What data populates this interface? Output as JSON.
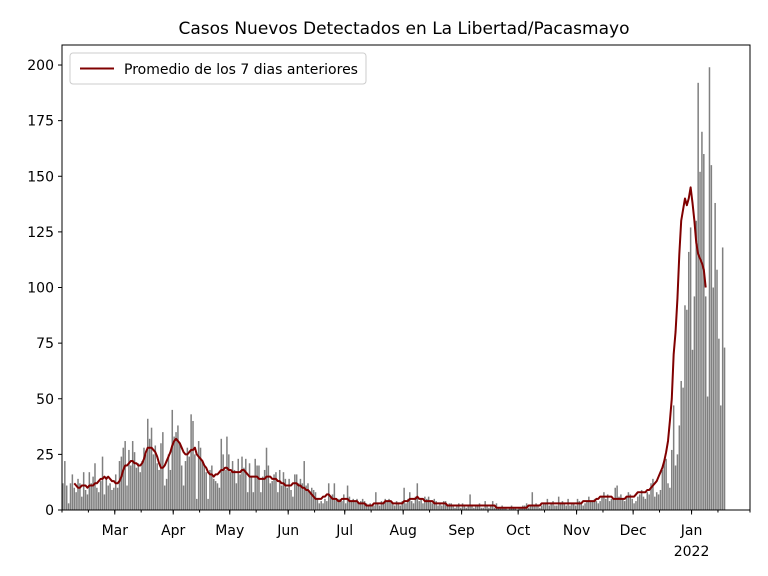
{
  "chart_data": {
    "type": "bar",
    "title": "Casos Nuevos Detectados en La Libertad/Pacasmayo",
    "xlabel": "",
    "ylabel": "",
    "x_start": "2021-02-01",
    "x_end": "2022-01-31",
    "ylim": [
      0,
      209
    ],
    "y_ticks": [
      0,
      25,
      50,
      75,
      100,
      125,
      150,
      175,
      200
    ],
    "x_ticks": [
      {
        "date": "2021-03-01",
        "label": "Mar"
      },
      {
        "date": "2021-04-01",
        "label": "Apr"
      },
      {
        "date": "2021-05-01",
        "label": "May"
      },
      {
        "date": "2021-06-01",
        "label": "Jun"
      },
      {
        "date": "2021-07-01",
        "label": "Jul"
      },
      {
        "date": "2021-08-01",
        "label": "Aug"
      },
      {
        "date": "2021-09-01",
        "label": "Sep"
      },
      {
        "date": "2021-10-01",
        "label": "Oct"
      },
      {
        "date": "2021-11-01",
        "label": "Nov"
      },
      {
        "date": "2021-12-01",
        "label": "Dec"
      },
      {
        "date": "2022-01-01",
        "label": "Jan"
      }
    ],
    "x_year_label": {
      "date": "2022-01-01",
      "label": "2022"
    },
    "grid": false,
    "legend_position": "top-left",
    "series": [
      {
        "kind": "bar",
        "color": "#808080",
        "values": [
          12,
          22,
          11,
          3,
          12,
          16,
          10,
          8,
          14,
          12,
          6,
          17,
          9,
          7,
          17,
          12,
          15,
          21,
          10,
          8,
          13,
          24,
          7,
          15,
          11,
          12,
          9,
          10,
          16,
          10,
          22,
          24,
          28,
          31,
          11,
          27,
          20,
          31,
          26,
          19,
          21,
          17,
          22,
          28,
          25,
          41,
          32,
          37,
          25,
          29,
          21,
          18,
          30,
          35,
          11,
          14,
          25,
          18,
          45,
          33,
          35,
          38,
          30,
          20,
          11,
          22,
          28,
          24,
          43,
          40,
          25,
          5,
          31,
          28,
          22,
          20,
          17,
          5,
          18,
          20,
          14,
          13,
          12,
          10,
          32,
          25,
          18,
          33,
          25,
          17,
          22,
          18,
          12,
          23,
          16,
          24,
          19,
          23,
          8,
          21,
          15,
          8,
          23,
          20,
          20,
          8,
          15,
          18,
          28,
          20,
          12,
          13,
          16,
          17,
          8,
          18,
          11,
          17,
          14,
          10,
          14,
          9,
          6,
          16,
          16,
          12,
          14,
          12,
          22,
          11,
          12,
          8,
          10,
          9,
          8,
          5,
          3,
          4,
          3,
          5,
          4,
          12,
          6,
          7,
          12,
          5,
          5,
          5,
          4,
          7,
          3,
          11,
          6,
          4,
          5,
          4,
          5,
          3,
          4,
          5,
          4,
          3,
          2,
          3,
          2,
          2,
          8,
          3,
          2,
          4,
          3,
          5,
          4,
          5,
          4,
          3,
          2,
          4,
          3,
          2,
          4,
          10,
          3,
          5,
          8,
          4,
          3,
          6,
          12,
          4,
          5,
          3,
          6,
          5,
          6,
          4,
          3,
          5,
          4,
          2,
          3,
          2,
          4,
          4,
          2,
          3,
          3,
          2,
          1,
          2,
          3,
          1,
          3,
          2,
          1,
          2,
          7,
          2,
          1,
          2,
          2,
          3,
          1,
          1,
          4,
          2,
          1,
          2,
          4,
          1,
          3,
          1,
          1,
          2,
          1,
          1,
          0,
          1,
          2,
          1,
          1,
          0,
          1,
          1,
          2,
          2,
          3,
          1,
          2,
          8,
          2,
          3,
          2,
          1,
          2,
          3,
          3,
          5,
          2,
          3,
          4,
          2,
          2,
          6,
          3,
          4,
          3,
          2,
          5,
          2,
          3,
          3,
          2,
          5,
          4,
          3,
          2,
          3,
          4,
          6,
          4,
          4,
          5,
          4,
          3,
          4,
          6,
          8,
          5,
          7,
          4,
          5,
          5,
          10,
          11,
          6,
          7,
          5,
          4,
          6,
          8,
          7,
          5,
          3,
          4,
          6,
          7,
          9,
          6,
          5,
          8,
          7,
          12,
          14,
          6,
          8,
          7,
          9,
          18,
          22,
          23,
          12,
          10,
          27,
          47,
          20,
          25,
          38,
          58,
          55,
          92,
          90,
          116,
          127,
          72,
          96,
          130,
          192,
          152,
          170,
          160,
          96,
          51,
          199,
          155,
          100,
          138,
          108,
          77,
          47,
          118,
          73
        ],
        "value_note": ""
      },
      {
        "kind": "line",
        "name": "Promedio de los 7 dias anteriores",
        "color": "#800000",
        "values": [
          null,
          null,
          null,
          null,
          null,
          null,
          12,
          11,
          10,
          10,
          11,
          11,
          11,
          10,
          11,
          11,
          11,
          12,
          12,
          13,
          14,
          14,
          15,
          14,
          15,
          14,
          13,
          13,
          12,
          12,
          13,
          15,
          18,
          20,
          20,
          21,
          22,
          22,
          21,
          21,
          20,
          20,
          21,
          23,
          26,
          28,
          28,
          28,
          27,
          26,
          24,
          21,
          19,
          19,
          20,
          22,
          24,
          26,
          29,
          31,
          32,
          31,
          30,
          28,
          26,
          25,
          25,
          26,
          27,
          27,
          28,
          25,
          24,
          23,
          22,
          20,
          19,
          17,
          16,
          16,
          15,
          16,
          16,
          17,
          18,
          18,
          19,
          19,
          18,
          18,
          17,
          17,
          17,
          17,
          17,
          18,
          18,
          17,
          16,
          15,
          15,
          15,
          15,
          15,
          14,
          14,
          14,
          14,
          15,
          15,
          15,
          14,
          14,
          14,
          13,
          13,
          12,
          12,
          11,
          11,
          11,
          11,
          12,
          12,
          12,
          11,
          11,
          10,
          10,
          9,
          9,
          8,
          7,
          6,
          5,
          5,
          5,
          5,
          6,
          6,
          7,
          7,
          6,
          5,
          5,
          5,
          4,
          4,
          5,
          5,
          5,
          5,
          4,
          4,
          4,
          4,
          4,
          3,
          3,
          3,
          3,
          2,
          2,
          2,
          2,
          3,
          3,
          3,
          3,
          3,
          3,
          4,
          4,
          4,
          4,
          3,
          3,
          3,
          3,
          3,
          3,
          4,
          4,
          4,
          5,
          5,
          5,
          5,
          6,
          5,
          5,
          5,
          4,
          4,
          4,
          4,
          4,
          3,
          3,
          3,
          3,
          3,
          3,
          3,
          2,
          2,
          2,
          2,
          2,
          2,
          2,
          2,
          2,
          2,
          2,
          2,
          2,
          2,
          2,
          2,
          2,
          2,
          2,
          2,
          2,
          2,
          2,
          2,
          2,
          2,
          1,
          1,
          1,
          1,
          1,
          1,
          1,
          1,
          1,
          1,
          1,
          1,
          1,
          1,
          1,
          1,
          1,
          2,
          2,
          2,
          2,
          2,
          2,
          2,
          3,
          3,
          3,
          3,
          3,
          3,
          3,
          3,
          3,
          3,
          3,
          3,
          3,
          3,
          3,
          3,
          3,
          3,
          3,
          3,
          3,
          3,
          4,
          4,
          4,
          4,
          4,
          4,
          4,
          5,
          5,
          6,
          6,
          6,
          6,
          6,
          6,
          6,
          5,
          5,
          5,
          5,
          5,
          5,
          5,
          6,
          6,
          6,
          6,
          6,
          7,
          8,
          8,
          8,
          8,
          8,
          9,
          9,
          10,
          11,
          12,
          13,
          15,
          17,
          19,
          22,
          26,
          31,
          40,
          50,
          70,
          80,
          95,
          115,
          130,
          135,
          140,
          137,
          140,
          145,
          138,
          130,
          120,
          115,
          113,
          111,
          108,
          100
        ]
      }
    ]
  }
}
